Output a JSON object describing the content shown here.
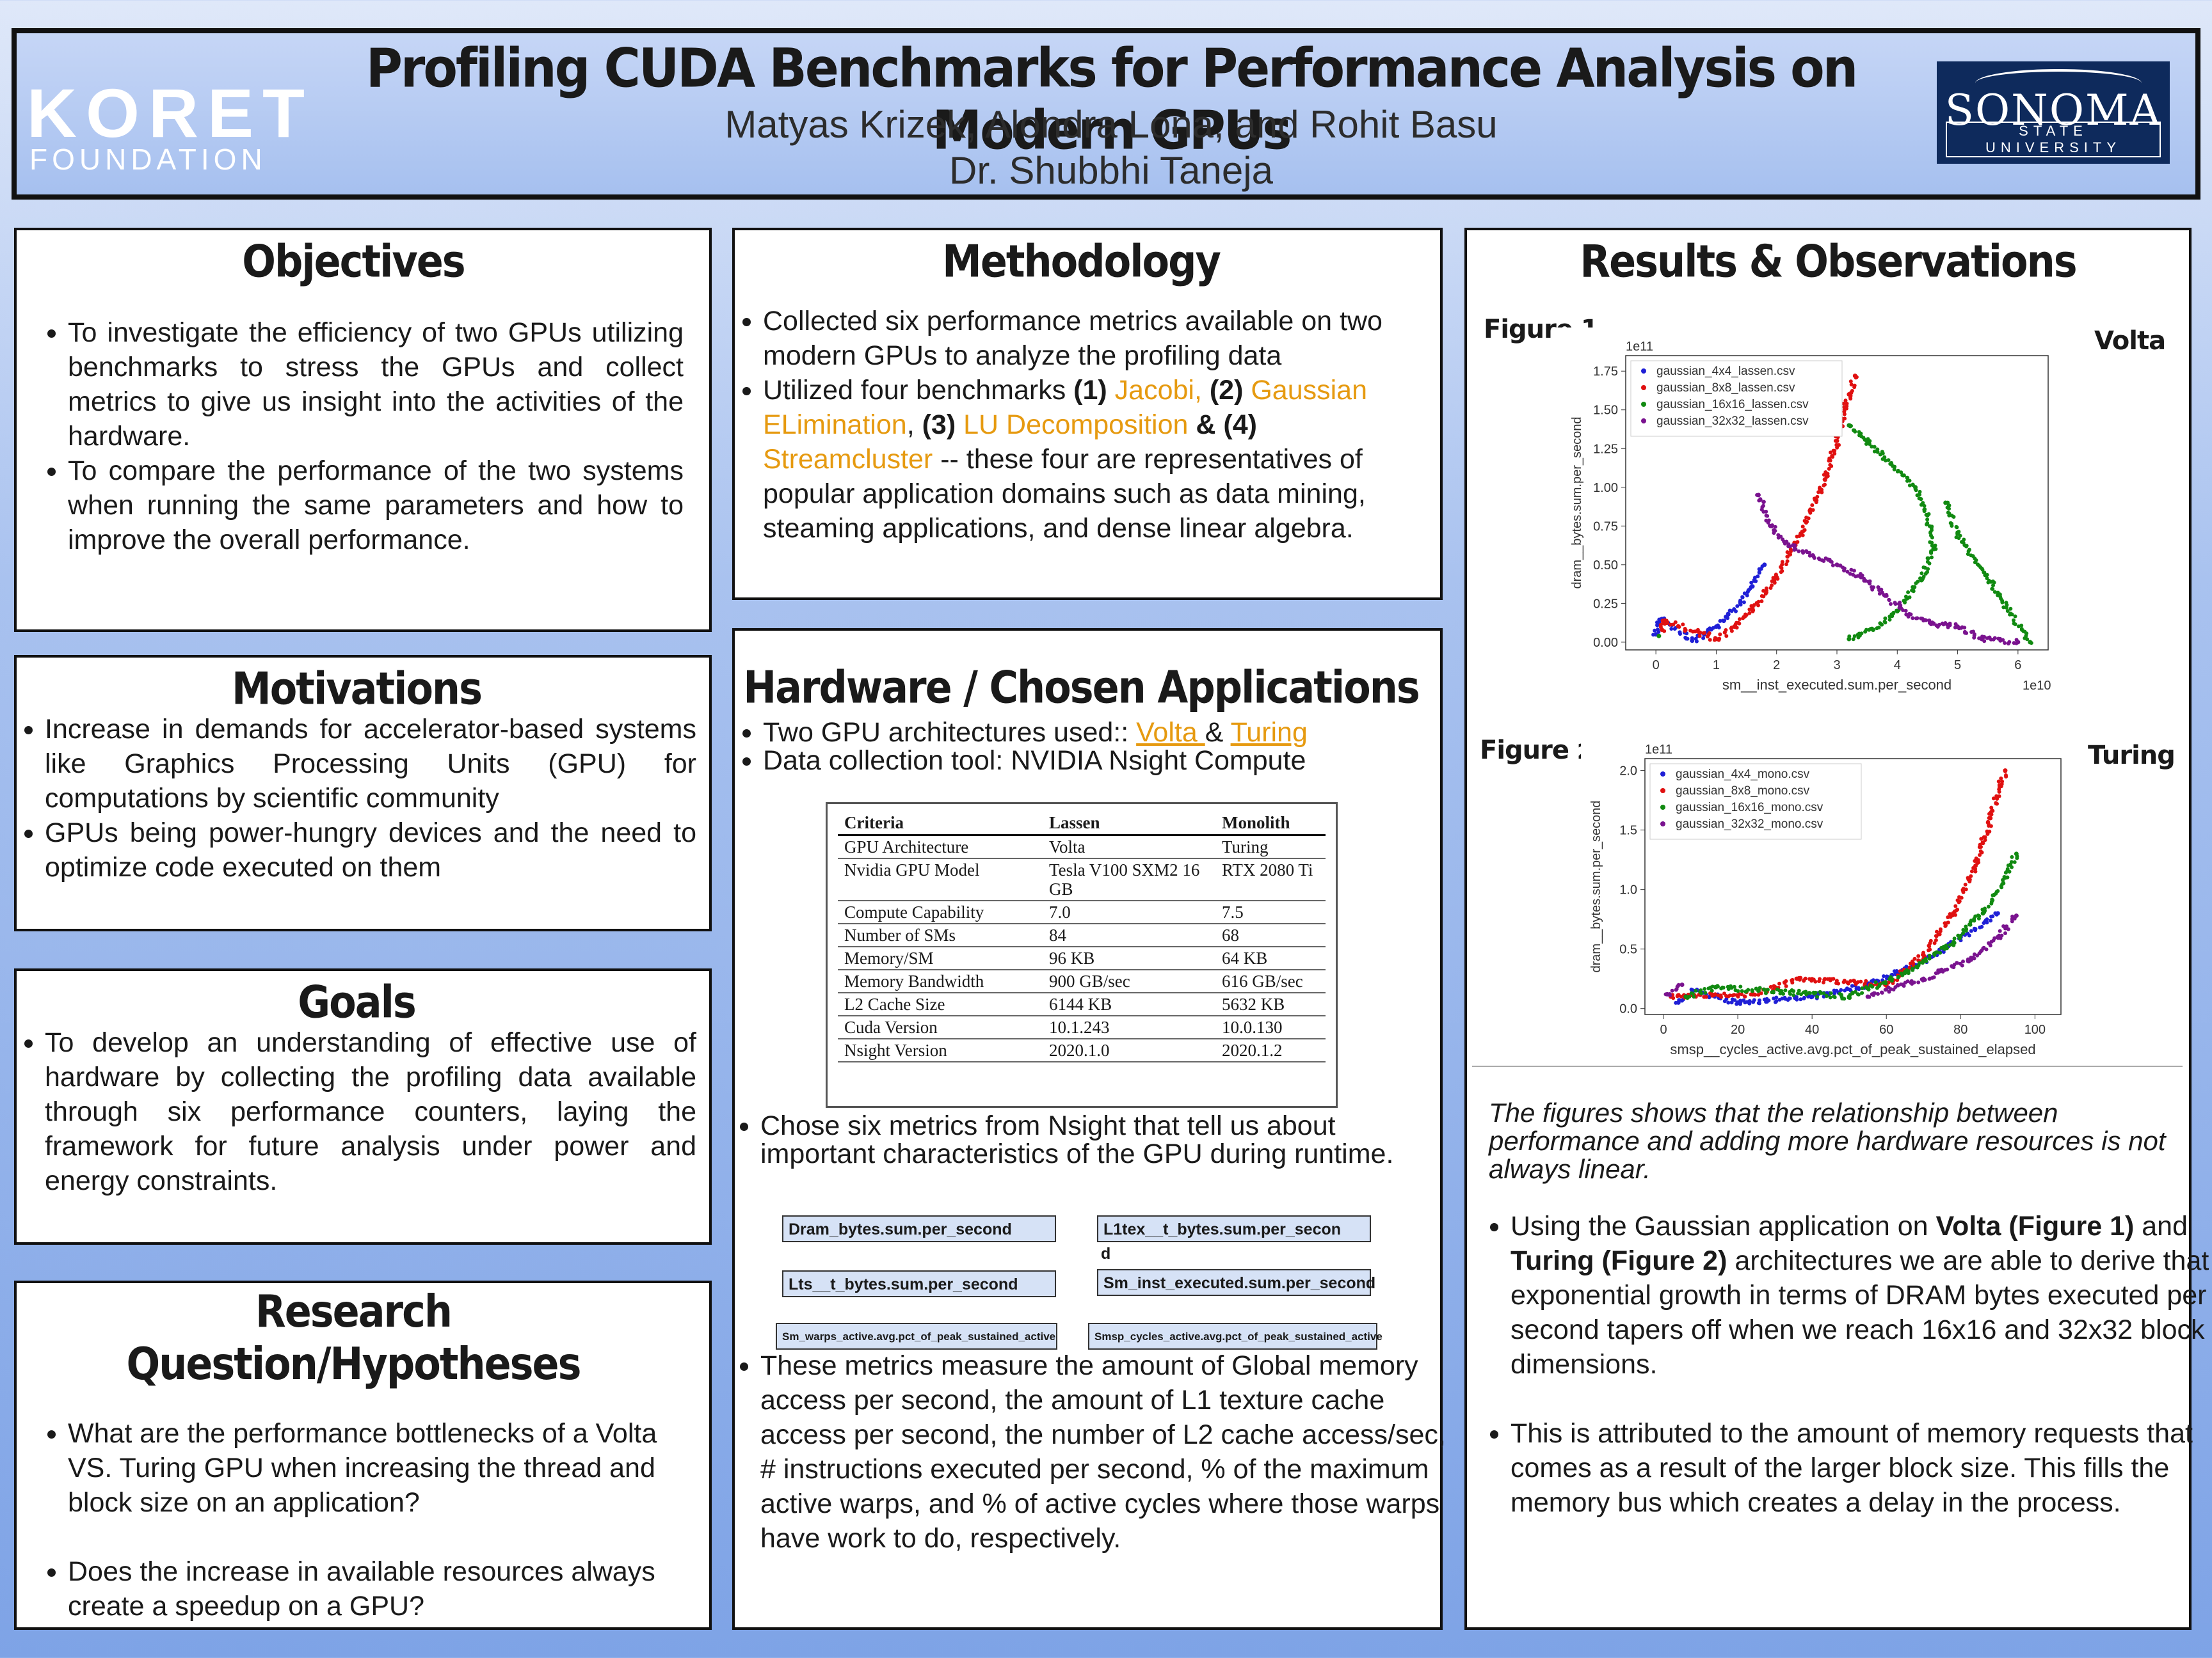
{
  "header": {
    "logo_left_line1": "KORET",
    "logo_left_line2": "FOUNDATION",
    "title": "Profiling CUDA Benchmarks for Performance Analysis on Modern GPUs",
    "authors": "Matyas Krizek, Alondra Lona, and Rohit Basu",
    "advisor": "Dr. Shubbhi Taneja",
    "logo_right_line1": "SONOMA",
    "logo_right_line2": "STATE UNIVERSITY"
  },
  "objectives": {
    "title": "Objectives",
    "items": [
      "To investigate the efficiency of two GPUs utilizing benchmarks to stress the GPUs and collect metrics to give us insight into the activities of the hardware.",
      "To compare the performance of the two systems when running the same parameters and how to improve the overall performance."
    ]
  },
  "motivations": {
    "title": "Motivations",
    "items": [
      "Increase in demands for accelerator-based systems like Graphics Processing Units (GPU) for computations by scientific community",
      "GPUs being power-hungry devices and the need to optimize code executed on them"
    ]
  },
  "goals": {
    "title": "Goals",
    "items": [
      "To develop an understanding of effective use of hardware by collecting the profiling data available through six performance counters, laying the framework for future analysis under power and energy constraints."
    ]
  },
  "research": {
    "title": "Research Question/Hypotheses",
    "items": [
      "What are the performance bottlenecks of a Volta VS. Turing GPU when increasing the thread and block size on an application?",
      "Does the increase in available resources always create a speedup on a GPU?"
    ]
  },
  "methodology": {
    "title": "Methodology",
    "item1": " Collected six performance metrics available on two modern GPUs to analyze the profiling data",
    "item2": {
      "pre": "Utilized four benchmarks ",
      "n1": "(1)",
      "b1": " Jacobi,",
      "n2": " (2)",
      "b2": " Gaussian ELimination",
      "n3": "(3)",
      "b3": " LU Decomposition",
      "amp": " & ",
      "n4": "(4)",
      "b4": "Streamcluster",
      "post": "  -- these four are  representatives of popular application domains such as data mining, steaming applications, and dense linear algebra."
    }
  },
  "hardware": {
    "title": "Hardware / Chosen Applications",
    "item1_pre": "Two GPU architectures used:: ",
    "item1_volta": "Volta ",
    "item1_amp": "& ",
    "item1_turing": "Turing",
    "item2": "Data collection tool: NVIDIA Nsight Compute",
    "table": {
      "headers": [
        "Criteria",
        "Lassen",
        "Monolith"
      ],
      "rows": [
        [
          "GPU Architecture",
          "Volta",
          "Turing"
        ],
        [
          "Nvidia GPU Model",
          "Tesla V100 SXM2 16 GB",
          "RTX 2080 Ti"
        ],
        [
          "Compute Capability",
          "7.0",
          "7.5"
        ],
        [
          "Number of SMs",
          "84",
          "68"
        ],
        [
          "Memory/SM",
          "96 KB",
          "64 KB"
        ],
        [
          "Memory Bandwidth",
          "900 GB/sec",
          "616 GB/sec"
        ],
        [
          "L2 Cache Size",
          "6144 KB",
          "5632 KB"
        ],
        [
          "Cuda Version",
          "10.1.243",
          "10.0.130"
        ],
        [
          "Nsight Version",
          "2020.1.0",
          "2020.1.2"
        ]
      ]
    },
    "item3": "Chose six metrics from Nsight that tell us about important characteristics of the GPU during runtime.",
    "metrics": [
      "Dram_bytes.sum.per_second",
      "L1tex__t_bytes.sum.per_secon",
      "d",
      "Lts__t_bytes.sum.per_second",
      "Sm_inst_executed.sum.per_second",
      "Sm_warps_active.avg.pct_of_peak_sustained_active",
      "Smsp_cycles_active.avg.pct_of_peak_sustained_active"
    ],
    "item4": "These metrics measure the amount of Global memory access per second, the amount of L1 texture cache access per second, the number of L2 cache access/sec, # instructions executed per second, % of the maximum active warps, and % of active cycles where those warps have work to do, respectively."
  },
  "results": {
    "title": "Results & Observations",
    "fig1_label": "Figure 1.",
    "fig1_arch": "Volta",
    "fig2_label": "Figure ",
    "fig2_num": "2.",
    "fig2_arch": "Turing",
    "caption": "The figures shows that the relationship between performance  and adding more hardware resources is not always linear.",
    "bullet1": {
      "pre": "Using the Gaussian application on ",
      "b1": "Volta (Figure 1)",
      "mid1": " and ",
      "b2": "Turing (Figure 2)",
      "post": " architectures we are able to derive that exponential growth in terms of DRAM bytes executed per second tapers off when we reach 16x16 and 32x32 block dimensions."
    },
    "bullet2": "This is attributed to the amount of memory requests that comes as a result of the larger block size. This fills the memory bus which creates a delay in the process."
  },
  "colors": {
    "series": [
      "#1f1fd6",
      "#e01010",
      "#118a11",
      "#7a138f"
    ],
    "accent": "#e69a10"
  },
  "chart_data": [
    {
      "type": "scatter",
      "xlabel": "sm__inst_executed.sum.per_second",
      "ylabel": "dram__bytes.sum.per_second",
      "x_exponent": "1e10",
      "y_exponent": "1e11",
      "xlim": [
        -0.5,
        6.5
      ],
      "ylim": [
        -0.05,
        1.85
      ],
      "xticks": [
        0,
        1,
        2,
        3,
        4,
        5,
        6
      ],
      "yticks": [
        0.0,
        0.25,
        0.5,
        0.75,
        1.0,
        1.25,
        1.5,
        1.75
      ],
      "yticklabels": [
        "0.00",
        "0.25",
        "0.50",
        "0.75",
        "1.00",
        "1.25",
        "1.50",
        "1.75"
      ],
      "legend_position": "top-left",
      "series": [
        {
          "name": "gaussian_4x4_lassen.csv",
          "points": [
            [
              0.0,
              0.05
            ],
            [
              0.05,
              0.12
            ],
            [
              0.1,
              0.15
            ],
            [
              0.6,
              0.01
            ],
            [
              0.8,
              0.05
            ],
            [
              1.0,
              0.1
            ],
            [
              1.2,
              0.18
            ],
            [
              1.4,
              0.26
            ],
            [
              1.6,
              0.36
            ],
            [
              1.8,
              0.5
            ]
          ]
        },
        {
          "name": "gaussian_8x8_lassen.csv",
          "points": [
            [
              0.1,
              0.08
            ],
            [
              0.15,
              0.14
            ],
            [
              1.0,
              0.02
            ],
            [
              1.3,
              0.1
            ],
            [
              1.6,
              0.22
            ],
            [
              2.0,
              0.42
            ],
            [
              2.4,
              0.7
            ],
            [
              2.8,
              1.05
            ],
            [
              3.0,
              1.3
            ],
            [
              3.2,
              1.6
            ],
            [
              3.3,
              1.72
            ]
          ]
        },
        {
          "name": "gaussian_16x16_lassen.csv",
          "points": [
            [
              0.05,
              0.04
            ],
            [
              3.2,
              1.4
            ],
            [
              3.5,
              1.3
            ],
            [
              3.9,
              1.15
            ],
            [
              4.3,
              1.0
            ],
            [
              4.5,
              0.82
            ],
            [
              4.6,
              0.6
            ],
            [
              4.4,
              0.4
            ],
            [
              4.0,
              0.2
            ],
            [
              3.6,
              0.08
            ],
            [
              3.2,
              0.02
            ],
            [
              4.8,
              0.9
            ],
            [
              5.0,
              0.7
            ],
            [
              6.2,
              0.0
            ]
          ]
        },
        {
          "name": "gaussian_32x32_lassen.csv",
          "points": [
            [
              1.7,
              0.95
            ],
            [
              1.9,
              0.75
            ],
            [
              2.2,
              0.62
            ],
            [
              2.6,
              0.56
            ],
            [
              3.0,
              0.5
            ],
            [
              3.4,
              0.42
            ],
            [
              3.8,
              0.3
            ],
            [
              4.2,
              0.18
            ],
            [
              4.6,
              0.12
            ],
            [
              5.0,
              0.1
            ],
            [
              5.4,
              0.02
            ],
            [
              6.0,
              0.0
            ]
          ]
        }
      ]
    },
    {
      "type": "scatter",
      "xlabel": "smsp__cycles_active.avg.pct_of_peak_sustained_elapsed",
      "ylabel": "dram__bytes.sum.per_second",
      "y_exponent": "1e11",
      "xlim": [
        -5,
        107
      ],
      "ylim": [
        -0.05,
        2.1
      ],
      "xticks": [
        0,
        20,
        40,
        60,
        80,
        100
      ],
      "yticks": [
        0.0,
        0.5,
        1.0,
        1.5,
        2.0
      ],
      "yticklabels": [
        "0.0",
        "0.5",
        "1.0",
        "1.5",
        "2.0"
      ],
      "legend_position": "top-left",
      "series": [
        {
          "name": "gaussian_4x4_mono.csv",
          "points": [
            [
              4,
              0.05
            ],
            [
              8,
              0.15
            ],
            [
              20,
              0.05
            ],
            [
              40,
              0.1
            ],
            [
              55,
              0.2
            ],
            [
              70,
              0.4
            ],
            [
              80,
              0.6
            ],
            [
              90,
              0.8
            ]
          ]
        },
        {
          "name": "gaussian_8x8_mono.csv",
          "points": [
            [
              2,
              0.1
            ],
            [
              24,
              0.12
            ],
            [
              30,
              0.18
            ],
            [
              36,
              0.25
            ],
            [
              60,
              0.2
            ],
            [
              70,
              0.45
            ],
            [
              78,
              0.8
            ],
            [
              84,
              1.2
            ],
            [
              88,
              1.6
            ],
            [
              92,
              2.0
            ]
          ]
        },
        {
          "name": "gaussian_16x16_mono.csv",
          "points": [
            [
              6,
              0.1
            ],
            [
              14,
              0.18
            ],
            [
              50,
              0.1
            ],
            [
              65,
              0.3
            ],
            [
              78,
              0.55
            ],
            [
              86,
              0.8
            ],
            [
              92,
              1.1
            ],
            [
              95,
              1.3
            ]
          ]
        },
        {
          "name": "gaussian_32x32_mono.csv",
          "points": [
            [
              1,
              0.12
            ],
            [
              5,
              0.2
            ],
            [
              55,
              0.1
            ],
            [
              70,
              0.25
            ],
            [
              82,
              0.4
            ],
            [
              90,
              0.6
            ],
            [
              95,
              0.78
            ]
          ]
        }
      ]
    }
  ]
}
